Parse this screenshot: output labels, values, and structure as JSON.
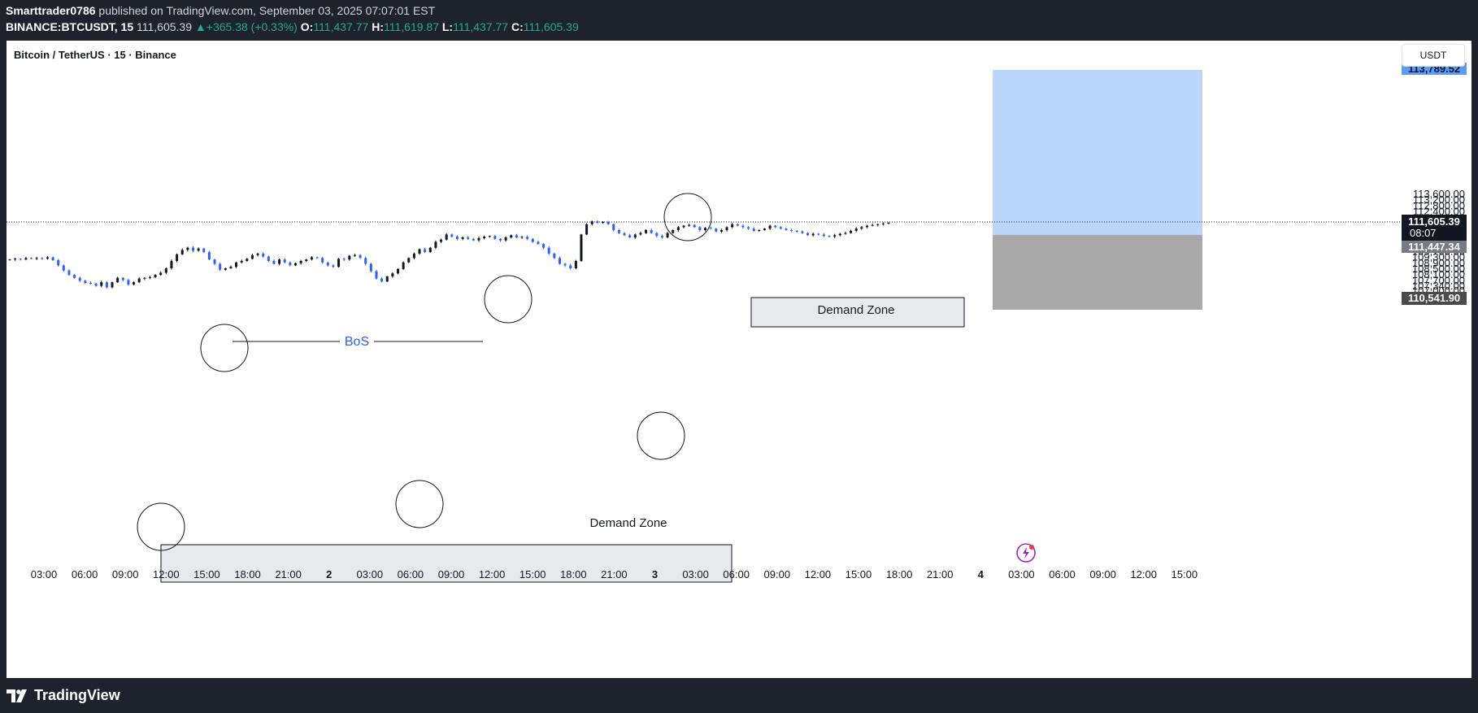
{
  "header": {
    "author": "Smarttrader0786",
    "published_text": "published on TradingView.com, September 03, 2025 07:07:01 EST",
    "symbol": "BINANCE:BTCUSDT, 15",
    "last_price": "111,605.39",
    "change": "+365.38 (+0.33%)",
    "open_label": "O:",
    "open": "111,437.77",
    "high_label": "H:",
    "high": "111,619.87",
    "low_label": "L:",
    "low": "111,437.77",
    "close_label": "C:",
    "close": "111,605.39"
  },
  "chart_title": "Bitcoin / TetherUS · 15 · Binance",
  "currency": "USDT",
  "footer": {
    "brand": "TradingView"
  },
  "colors": {
    "up": "#131722",
    "down": "#2962ff",
    "target_zone": "#bbd6fb",
    "stop_zone": "#a9a9a9",
    "background": "#ffffff"
  },
  "icons": {
    "logo": "tradingview-logo-icon",
    "flash": "lightning-flash-icon"
  },
  "annotations": {
    "bos_label": "BoS",
    "demand_zone_1": "Demand Zone",
    "demand_zone_2": "Demand Zone"
  },
  "chart_data": {
    "type": "candlestick",
    "title": "Bitcoin / TetherUS · 15 · Binance",
    "ylim": [
      106850,
      113950
    ],
    "y_ticks": [
      "113,600.00",
      "113,200.00",
      "112,800.00",
      "112,400.00",
      "111,900.00",
      "110,900.00",
      "110,100.00",
      "109,700.00",
      "109,300.00",
      "108,900.00",
      "108,500.00",
      "108,100.00",
      "107,700.00",
      "107,340.00",
      "107,000.00"
    ],
    "x_ticks": [
      "03:00",
      "06:00",
      "09:00",
      "12:00",
      "15:00",
      "18:00",
      "21:00",
      "2",
      "03:00",
      "06:00",
      "09:00",
      "12:00",
      "15:00",
      "18:00",
      "21:00",
      "3",
      "03:00",
      "06:00",
      "09:00",
      "12:00",
      "15:00",
      "18:00",
      "21:00",
      "4",
      "03:00",
      "06:00",
      "09:00",
      "12:00",
      "15:00"
    ],
    "price_labels": {
      "target": "113,789.52",
      "current": "111,605.39",
      "countdown": "08:07",
      "entry": "111,447.34",
      "stop": "110,541.90"
    },
    "closes": [
      109100,
      109150,
      109100,
      109200,
      109150,
      109200,
      109150,
      109250,
      109050,
      108700,
      108350,
      108050,
      107850,
      107650,
      107500,
      107450,
      107300,
      107550,
      107200,
      107550,
      107850,
      107700,
      107400,
      107550,
      107800,
      107850,
      107900,
      108050,
      108200,
      108500,
      109000,
      109450,
      109750,
      109900,
      109700,
      109850,
      109600,
      109100,
      108800,
      108400,
      108500,
      108600,
      108900,
      109000,
      109150,
      109400,
      109500,
      109300,
      109000,
      108800,
      109100,
      108900,
      108700,
      108850,
      109000,
      109100,
      109250,
      109200,
      108900,
      108700,
      108600,
      109150,
      109100,
      109350,
      109400,
      109200,
      108800,
      108300,
      107800,
      107600,
      107950,
      108150,
      108450,
      108900,
      109200,
      109500,
      109800,
      109600,
      109900,
      110300,
      110450,
      110800,
      110650,
      110500,
      110600,
      110500,
      110400,
      110550,
      110650,
      110700,
      110500,
      110400,
      110600,
      110750,
      110600,
      110650,
      110500,
      110300,
      110150,
      109900,
      109500,
      109200,
      108800,
      108700,
      108500,
      109000,
      110800,
      111500,
      111700,
      111600,
      111650,
      111500,
      111100,
      110900,
      110750,
      110600,
      110800,
      110900,
      111100,
      110900,
      110700,
      110600,
      110900,
      111100,
      111300,
      111400,
      111450,
      111300,
      111100,
      111250,
      111200,
      111000,
      111100,
      111300,
      111500,
      111400,
      111300,
      111200,
      111050,
      111100,
      111200,
      111400,
      111300,
      111200,
      111100,
      111050,
      111000,
      110900,
      110750,
      110850,
      110800,
      110700,
      110650,
      110750,
      110850,
      110900,
      111050,
      111200,
      111300,
      111400,
      111450,
      111500,
      111550,
      111600
    ]
  }
}
